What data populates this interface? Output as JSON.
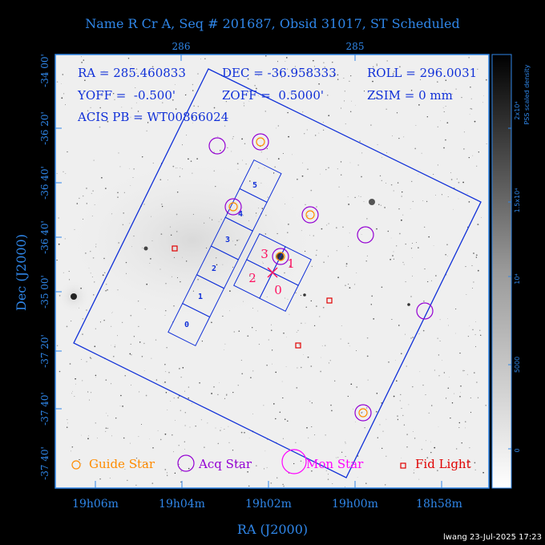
{
  "title": "Name R Cr A, Seq # 201687, Obsid 31017, ST Scheduled",
  "info": {
    "ra": "RA = 285.460833",
    "dec": "DEC = -36.958333",
    "roll": "ROLL = 296.0031",
    "yoff": "YOFF =  -0.500'",
    "zoff": "ZOFF =  0.5000'",
    "zsim": "ZSIM = 0 mm",
    "acis": "ACIS PB = WT00866024"
  },
  "axes": {
    "xlabel": "RA (J2000)",
    "ylabel": "Dec (J2000)",
    "x_ticks": [
      "19h06m",
      "19h04m",
      "19h02m",
      "19h00m",
      "18h58m"
    ],
    "top_ticks": [
      "286",
      "285"
    ],
    "y_ticks": [
      "-34 00'",
      "-36 20'",
      "-36 40'",
      "-36 40'",
      "-35 00'",
      "-37 20'",
      "-37 40'",
      "-37 40'"
    ]
  },
  "chips": [
    "0",
    "1",
    "2",
    "3",
    "4",
    "5"
  ],
  "aimpoint_chips": [
    "3",
    "1",
    "2",
    "0"
  ],
  "legend": {
    "guide": "Guide Star",
    "acq": "Acq Star",
    "mon": "Mon Star",
    "fid": "Fid Light"
  },
  "colorbar": {
    "label_line1": "2x10⁴",
    "label_line2": "PSS scaled density",
    "ticks": [
      "1.5x10⁴",
      "10⁴",
      "5000",
      "0"
    ]
  },
  "footer": "lwang 23-Jul-2025 17:23",
  "colors": {
    "axis": "#2f86e8",
    "fov": "#1030d8",
    "guide": "#ff8c00",
    "acq": "#9400d3",
    "mon": "#ff00ff",
    "fid": "#e00000",
    "aim": "#ff1060"
  }
}
